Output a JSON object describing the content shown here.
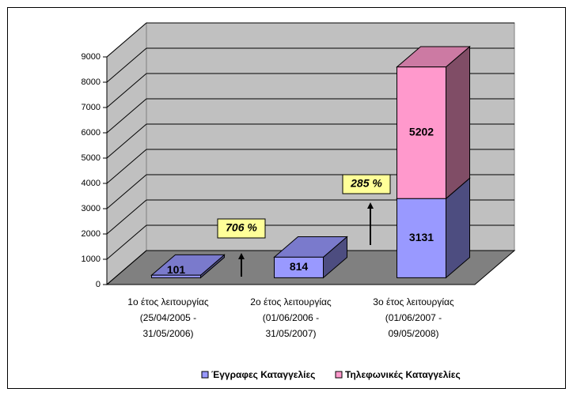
{
  "chart_data": {
    "type": "bar3d_stacked",
    "categories": [
      [
        "1ο έτος λειτουργίας",
        "(25/04/2005 -",
        "31/05/2006)"
      ],
      [
        "2ο έτος λειτουργίας",
        "(01/06/2006 -",
        "31/05/2007)"
      ],
      [
        "3ο έτος λειτουργίας",
        "(01/06/2007 -",
        "09/05/2008)"
      ]
    ],
    "series": [
      {
        "name": "Έγγραφες Καταγγελίες",
        "color": "#9999ff",
        "values": [
          101,
          814,
          3131
        ]
      },
      {
        "name": "Τηλεφωνικές Καταγγελίες",
        "color": "#ff99cc",
        "values": [
          null,
          null,
          5202
        ]
      }
    ],
    "annotations": [
      "706 %",
      "285 %"
    ],
    "ylim": [
      0,
      9000
    ],
    "yticks": [
      0,
      1000,
      2000,
      3000,
      4000,
      5000,
      6000,
      7000,
      8000,
      9000
    ],
    "grid": true,
    "legend": "bottom"
  }
}
